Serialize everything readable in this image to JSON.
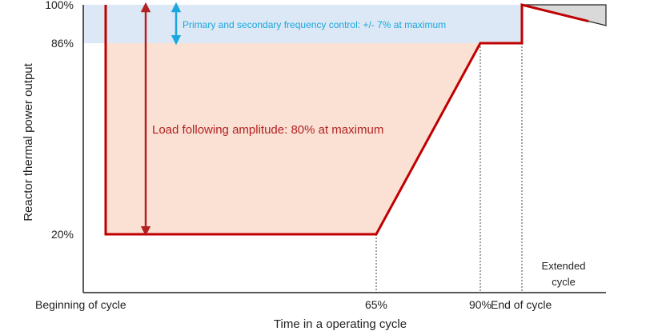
{
  "chart_data": {
    "type": "line",
    "title": "",
    "xlabel": "Time in a operating cycle",
    "ylabel": "Reactor thermal power output",
    "x_ticks": [
      {
        "x": 0,
        "label": "Beginning of cycle"
      },
      {
        "x": 65,
        "label": "65%"
      },
      {
        "x": 90,
        "label": "90%"
      },
      {
        "x": 100,
        "label": "End of cycle"
      }
    ],
    "y_ticks": [
      {
        "y": 100,
        "label": "100%"
      },
      {
        "y": 86,
        "label": "86%"
      },
      {
        "y": 20,
        "label": "20%"
      }
    ],
    "xlim": [
      -5,
      116
    ],
    "ylim": [
      0,
      100
    ],
    "series": [
      {
        "color": "#c00000",
        "x": [
          0,
          0,
          65,
          90,
          100,
          100,
          116
        ],
        "y": [
          100,
          20,
          20,
          86,
          86,
          100,
          94
        ]
      }
    ],
    "annotations": {
      "frequency_control": "Primary and secondary frequency control: +/- 7% at maximum",
      "load_following": "Load following amplitude: 80% at maximum",
      "extended_cycle_line1": "Extended",
      "extended_cycle_line2": "cycle"
    },
    "colors": {
      "frequency_band": "#dce8f5",
      "load_area": "#fbe0d4",
      "extended_area": "#d9d9d9",
      "blue_arrow": "#1aa7e0",
      "red_arrow": "#b22222"
    }
  }
}
